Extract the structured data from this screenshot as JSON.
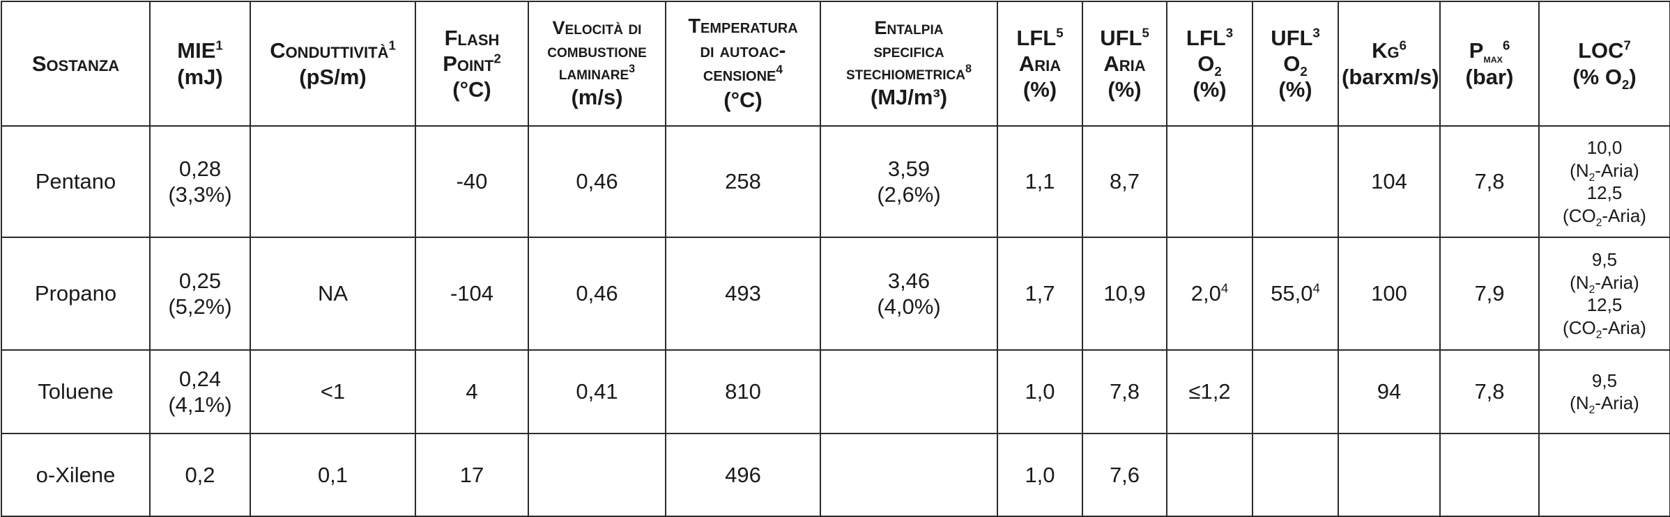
{
  "headers": {
    "sostanza": "Sostanza",
    "mie": "MIE",
    "mie_sup": "1",
    "mie_unit": "(mJ)",
    "cond": "Conduttività",
    "cond_sup": "1",
    "cond_unit": "(pS/m)",
    "flash_1": "Flash",
    "flash_2": "Point",
    "flash_sup": "2",
    "flash_unit": "(°C)",
    "vel_1": "Velocità di",
    "vel_2": "combustione",
    "vel_3": "laminare",
    "vel_sup": "3",
    "vel_unit": "(m/s)",
    "temp_1": "Temperatura",
    "temp_2": "di autoac-",
    "temp_3": "censione",
    "temp_sup": "4",
    "temp_unit": "(°C)",
    "ent_1": "Entalpia",
    "ent_2": "specifica",
    "ent_3": "stechiometrica",
    "ent_sup": "8",
    "ent_unit": "(MJ/m³)",
    "lfl_aria": "LFL",
    "lfl_aria_sup": "5",
    "lfl_aria_2": "Aria",
    "lfl_aria_unit": "(%)",
    "ufl_aria": "UFL",
    "ufl_aria_sup": "5",
    "ufl_aria_2": "Aria",
    "ufl_aria_unit": "(%)",
    "lfl_o2": "LFL",
    "lfl_o2_sup": "3",
    "lfl_o2_2": "O",
    "lfl_o2_sub": "2",
    "lfl_o2_unit": "(%)",
    "ufl_o2": "UFL",
    "ufl_o2_sup": "3",
    "ufl_o2_2": "O",
    "ufl_o2_sub": "2",
    "ufl_o2_unit": "(%)",
    "kg": "Kg",
    "kg_sup": "6",
    "kg_unit": "(barxm/s)",
    "pmax": "P",
    "pmax_sub": "MAX",
    "pmax_sup": "6",
    "pmax_unit": "(bar)",
    "loc": "LOC",
    "loc_sup": "7",
    "loc_unit_a": "(% O",
    "loc_unit_sub": "2",
    "loc_unit_b": ")"
  },
  "rows": [
    {
      "sostanza": "Pentano",
      "mie_1": "0,28",
      "mie_2": "(3,3%)",
      "cond": "",
      "flash": "-40",
      "vel": "0,46",
      "temp": "258",
      "ent_1": "3,59",
      "ent_2": "(2,6%)",
      "lfl_aria": "1,1",
      "ufl_aria": "8,7",
      "lfl_o2": "",
      "lfl_o2_sup": "",
      "ufl_o2": "",
      "ufl_o2_sup": "",
      "kg": "104",
      "pmax": "7,8",
      "loc_1": "10,0",
      "loc_2a": "(N",
      "loc_2sub": "2",
      "loc_2b": "-Aria)",
      "loc_3": "12,5",
      "loc_4a": "(CO",
      "loc_4sub": "2",
      "loc_4b": "-Aria)"
    },
    {
      "sostanza": "Propano",
      "mie_1": "0,25",
      "mie_2": "(5,2%)",
      "cond": "NA",
      "flash": "-104",
      "vel": "0,46",
      "temp": "493",
      "ent_1": "3,46",
      "ent_2": "(4,0%)",
      "lfl_aria": "1,7",
      "ufl_aria": "10,9",
      "lfl_o2": "2,0",
      "lfl_o2_sup": "4",
      "ufl_o2": "55,0",
      "ufl_o2_sup": "4",
      "kg": "100",
      "pmax": "7,9",
      "loc_1": "9,5",
      "loc_2a": "(N",
      "loc_2sub": "2",
      "loc_2b": "-Aria)",
      "loc_3": "12,5",
      "loc_4a": "(CO",
      "loc_4sub": "2",
      "loc_4b": "-Aria)"
    },
    {
      "sostanza": "Toluene",
      "mie_1": "0,24",
      "mie_2": "(4,1%)",
      "cond": "<1",
      "flash": "4",
      "vel": "0,41",
      "temp": "810",
      "ent_1": "",
      "ent_2": "",
      "lfl_aria": "1,0",
      "ufl_aria": "7,8",
      "lfl_o2": "≤1,2",
      "lfl_o2_sup": "",
      "ufl_o2": "",
      "ufl_o2_sup": "",
      "kg": "94",
      "pmax": "7,8",
      "loc_1": "9,5",
      "loc_2a": "(N",
      "loc_2sub": "2",
      "loc_2b": "-Aria)",
      "loc_3": "",
      "loc_4a": "",
      "loc_4sub": "",
      "loc_4b": ""
    },
    {
      "sostanza": "o-Xilene",
      "mie_1": "0,2",
      "mie_2": "",
      "cond": "0,1",
      "flash": "17",
      "vel": "",
      "temp": "496",
      "ent_1": "",
      "ent_2": "",
      "lfl_aria": "1,0",
      "ufl_aria": "7,6",
      "lfl_o2": "",
      "lfl_o2_sup": "",
      "ufl_o2": "",
      "ufl_o2_sup": "",
      "kg": "",
      "pmax": "",
      "loc_1": "",
      "loc_2a": "",
      "loc_2sub": "",
      "loc_2b": "",
      "loc_3": "",
      "loc_4a": "",
      "loc_4sub": "",
      "loc_4b": ""
    }
  ]
}
